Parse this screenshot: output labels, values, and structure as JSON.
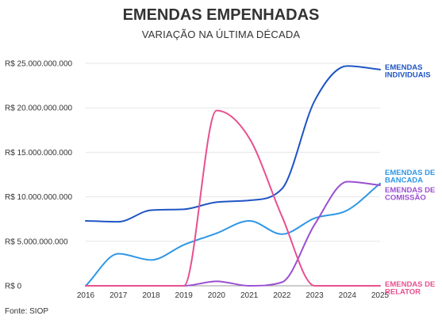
{
  "header": {
    "title": "EMENDAS EMPENHADAS",
    "subtitle": "VARIAÇÃO NA ÚLTIMA DÉCADA"
  },
  "footer": {
    "source": "Fonte: SIOP"
  },
  "chart_data": {
    "type": "line",
    "title": "EMENDAS EMPENHADAS",
    "subtitle": "VARIAÇÃO NA ÚLTIMA DÉCADA",
    "xlabel": "",
    "ylabel": "",
    "x": [
      2016,
      2017,
      2018,
      2019,
      2020,
      2021,
      2022,
      2023,
      2024,
      2025
    ],
    "ylim": [
      0,
      25000000000
    ],
    "yticks": [
      0,
      5000000000,
      10000000000,
      15000000000,
      20000000000,
      25000000000
    ],
    "ytick_labels": [
      "R$ 0",
      "R$ 5.000.000.000",
      "R$ 10.000.000.000",
      "R$ 15.000.000.000",
      "R$ 20.000.000.000",
      "R$ 25.000.000.000"
    ],
    "grid": "horizontal",
    "legend": "direct labels at right end of lines",
    "series": [
      {
        "name": "EMENDAS INDIVIDUAIS",
        "label_lines": [
          "EMENDAS",
          "INDIVIDUAIS"
        ],
        "color": "#1f55c4",
        "values": [
          7300000000,
          7200000000,
          8500000000,
          8600000000,
          9400000000,
          9600000000,
          10900000000,
          20800000000,
          24700000000,
          24300000000
        ]
      },
      {
        "name": "EMENDAS DE BANCADA",
        "label_lines": [
          "EMENDAS DE",
          "BANCADA"
        ],
        "color": "#2f97e6",
        "values": [
          0,
          3600000000,
          2900000000,
          4600000000,
          5900000000,
          7300000000,
          5800000000,
          7600000000,
          8500000000,
          11500000000
        ]
      },
      {
        "name": "EMENDAS DE COMISSÃO",
        "label_lines": [
          "EMENDAS DE",
          "COMISSÃO"
        ],
        "color": "#9b4fd1",
        "values": [
          0,
          0,
          0,
          0,
          500000000,
          0,
          400000000,
          6900000000,
          11700000000,
          11300000000
        ]
      },
      {
        "name": "EMENDAS DE RELATOR",
        "label_lines": [
          "EMENDAS DE",
          "RELATOR"
        ],
        "color": "#e8508f",
        "values": [
          0,
          0,
          0,
          0,
          19700000000,
          16600000000,
          7800000000,
          0,
          0,
          0
        ]
      }
    ]
  }
}
